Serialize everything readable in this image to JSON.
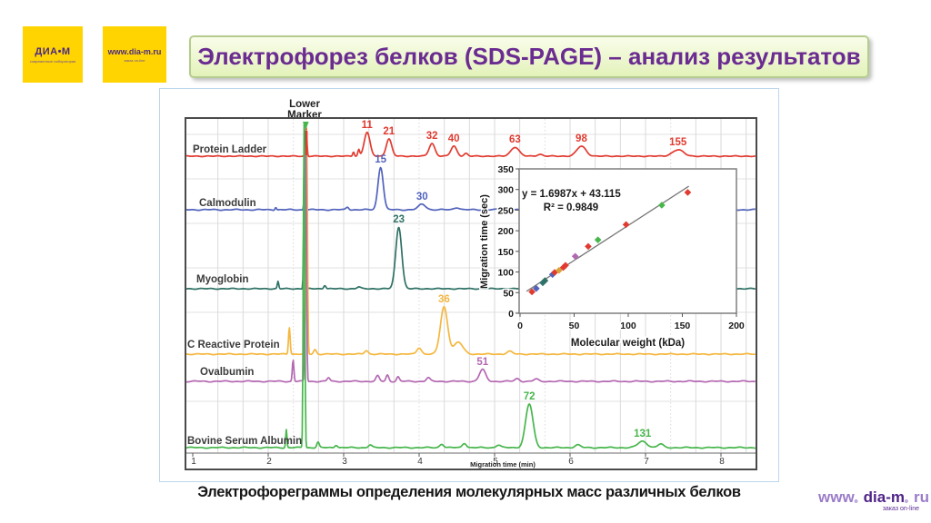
{
  "logos": {
    "diam": {
      "title": "ДИА•М",
      "sub": "современные лаборатории"
    },
    "site": {
      "title": "www.dia-m.ru",
      "sub": "заказ on-line"
    }
  },
  "title": {
    "text": "Электрофорез белков (SDS-PAGE) – анализ результатов",
    "color": "#6b2c91"
  },
  "caption": {
    "text": "Электрофореграммы определения молекулярных масс различных белков"
  },
  "footer": {
    "www": "www",
    "dot1": "。",
    "name": "dia-m",
    "dot2": "。",
    "tld": "ru",
    "tagline": "заказ on-line"
  },
  "chart_data": {
    "type": "line",
    "title": "",
    "xlabel": "Migration time (min)",
    "x_ticks": [
      1,
      2,
      3,
      4,
      5,
      6,
      7,
      8
    ],
    "x_range": [
      1,
      8.5
    ],
    "marker_annotation": {
      "line1": "Lower",
      "line2": "Marker",
      "time_min": 2.5
    },
    "grid": true,
    "traces": [
      {
        "name": "Protein Ladder",
        "color": "#e13b30",
        "peaks": [
          {
            "label": "11",
            "t": 3.31,
            "h": 26,
            "w": 3.2
          },
          {
            "label": "21",
            "t": 3.6,
            "h": 19,
            "w": 3.0
          },
          {
            "label": "32",
            "t": 4.17,
            "h": 14,
            "w": 3.2
          },
          {
            "label": "40",
            "t": 4.46,
            "h": 11,
            "w": 3.2
          },
          {
            "label": "63",
            "t": 5.27,
            "h": 10,
            "w": 4.5
          },
          {
            "label": "98",
            "t": 6.15,
            "h": 11,
            "w": 5
          },
          {
            "label": "155",
            "t": 7.43,
            "h": 7,
            "w": 6
          }
        ],
        "minor": [
          {
            "t": 3.13,
            "h": 5,
            "w": 0.9
          },
          {
            "t": 3.2,
            "h": 7,
            "w": 1.0
          },
          {
            "t": 4.62,
            "h": 3,
            "w": 2
          },
          {
            "t": 5.6,
            "h": 2,
            "w": 3
          }
        ]
      },
      {
        "name": "Calmodulin",
        "color": "#5163bc",
        "peaks": [
          {
            "label": "15",
            "t": 3.49,
            "h": 47,
            "w": 2.9
          },
          {
            "label": "30",
            "t": 4.04,
            "h": 6,
            "w": 4
          }
        ],
        "minor": [
          {
            "t": 2.1,
            "h": 3,
            "w": 0.8
          },
          {
            "t": 3.05,
            "h": 3,
            "w": 1.5
          },
          {
            "t": 4.5,
            "h": 2.5,
            "w": 3
          },
          {
            "t": 5.1,
            "h": 2,
            "w": 3
          }
        ]
      },
      {
        "name": "Myoglobin",
        "color": "#2e7165",
        "peaks": [
          {
            "label": "23",
            "t": 3.73,
            "h": 68,
            "w": 3.3
          }
        ],
        "minor": [
          {
            "t": 2.13,
            "h": 8,
            "w": 0.8
          },
          {
            "t": 2.75,
            "h": 4,
            "w": 1.2
          },
          {
            "t": 3.2,
            "h": 2,
            "w": 2
          }
        ]
      },
      {
        "name": "C Reactive Protein",
        "color": "#f5b73e",
        "peaks": [
          {
            "label": "36",
            "t": 4.33,
            "h": 52,
            "w": 4.0
          }
        ],
        "minor": [
          {
            "t": 2.28,
            "h": 30,
            "w": 0.9
          },
          {
            "t": 2.62,
            "h": 5,
            "w": 1.5
          },
          {
            "t": 3.3,
            "h": 4,
            "w": 2
          },
          {
            "t": 4.0,
            "h": 7,
            "w": 2.5
          },
          {
            "t": 4.52,
            "h": 13,
            "w": 5
          },
          {
            "t": 5.2,
            "h": 3,
            "w": 3
          }
        ]
      },
      {
        "name": "Ovalbumin",
        "color": "#b468b2",
        "peaks": [
          {
            "label": "51",
            "t": 4.84,
            "h": 13,
            "w": 3.4
          }
        ],
        "minor": [
          {
            "t": 2.33,
            "h": 24,
            "w": 0.85
          },
          {
            "t": 2.8,
            "h": 4,
            "w": 1.5
          },
          {
            "t": 3.45,
            "h": 6,
            "w": 1.8
          },
          {
            "t": 3.58,
            "h": 7,
            "w": 1.5
          },
          {
            "t": 3.72,
            "h": 5,
            "w": 1.5
          },
          {
            "t": 4.12,
            "h": 4,
            "w": 2
          },
          {
            "t": 5.3,
            "h": 3,
            "w": 2.5
          },
          {
            "t": 5.55,
            "h": 2.5,
            "w": 2.5
          }
        ]
      },
      {
        "name": "Bovine Serum Albumin",
        "color": "#47b64c",
        "peaks": [
          {
            "label": "72",
            "t": 5.46,
            "h": 48,
            "w": 4.1
          },
          {
            "label": "131",
            "t": 6.96,
            "h": 7,
            "w": 5
          }
        ],
        "minor": [
          {
            "t": 2.24,
            "h": 20,
            "w": 0.7
          },
          {
            "t": 2.66,
            "h": 6,
            "w": 1.3
          },
          {
            "t": 2.9,
            "h": 3,
            "w": 1.5
          },
          {
            "t": 3.35,
            "h": 3,
            "w": 2
          },
          {
            "t": 4.3,
            "h": 4,
            "w": 2.2
          },
          {
            "t": 4.6,
            "h": 5,
            "w": 2.2
          },
          {
            "t": 5.05,
            "h": 3,
            "w": 2.5
          },
          {
            "t": 6.1,
            "h": 3,
            "w": 3
          },
          {
            "t": 7.2,
            "h": 4,
            "w": 3
          }
        ]
      }
    ],
    "inset": {
      "type": "scatter",
      "xlabel": "Molecular weight (kDa)",
      "ylabel": "Migration time (sec)",
      "x_ticks": [
        0,
        50,
        100,
        150,
        200
      ],
      "y_ticks": [
        0,
        50,
        100,
        150,
        200,
        250,
        300,
        350
      ],
      "xlim": [
        0,
        200
      ],
      "ylim": [
        0,
        350
      ],
      "equation": "y = 1.6987x + 43.115",
      "r_squared": "R² = 0.9849",
      "trendline": {
        "slope": 1.6987,
        "intercept": 43.115,
        "x_from": 6,
        "x_to": 156
      },
      "points": [
        {
          "mw": 11,
          "sec": 52,
          "color": "#e13b30"
        },
        {
          "mw": 15,
          "sec": 60,
          "color": "#5163bc"
        },
        {
          "mw": 21,
          "sec": 74,
          "color": "#31746f"
        },
        {
          "mw": 23,
          "sec": 79,
          "color": "#2e7165"
        },
        {
          "mw": 30,
          "sec": 94,
          "color": "#5163bc"
        },
        {
          "mw": 32,
          "sec": 99,
          "color": "#e13b30"
        },
        {
          "mw": 36,
          "sec": 104,
          "color": "#d9a33c"
        },
        {
          "mw": 40,
          "sec": 111,
          "color": "#e13b30"
        },
        {
          "mw": 42,
          "sec": 116,
          "color": "#e13b30"
        },
        {
          "mw": 51,
          "sec": 138,
          "color": "#b468b2"
        },
        {
          "mw": 63,
          "sec": 162,
          "color": "#e13b30"
        },
        {
          "mw": 72,
          "sec": 178,
          "color": "#47b64c"
        },
        {
          "mw": 98,
          "sec": 215,
          "color": "#e13b30"
        },
        {
          "mw": 131,
          "sec": 262,
          "color": "#47b64c"
        },
        {
          "mw": 155,
          "sec": 293,
          "color": "#e13b30"
        }
      ]
    }
  }
}
